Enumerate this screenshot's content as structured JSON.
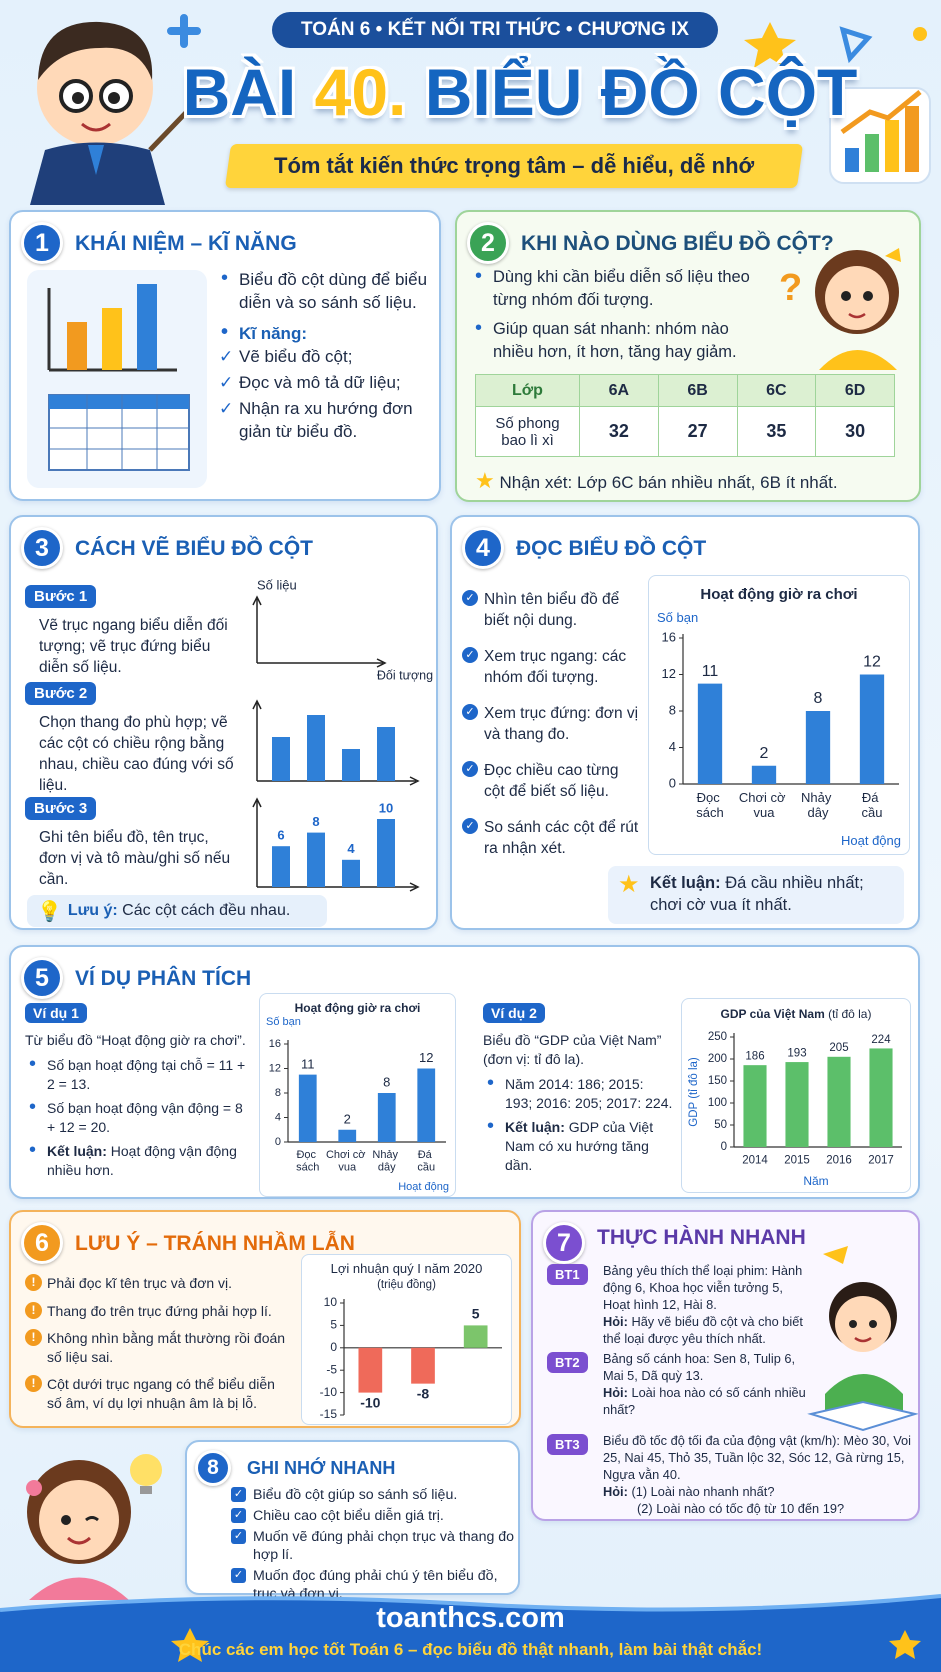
{
  "header": {
    "badge": "TOÁN 6 • KẾT NỐI TRI THỨC • CHƯƠNG IX",
    "title_lead": "BÀI",
    "title_number": "40.",
    "title_main": "BIỂU ĐỒ CỘT",
    "subtitle": "Tóm tắt kiến thức trọng tâm – dễ hiểu, dễ nhớ"
  },
  "sections": [
    {
      "number": 1,
      "title": "KHÁI NIỆM – KĨ NĂNG",
      "definition": "Biểu đồ cột dùng để biểu diễn và so sánh số liệu.",
      "skills_heading": "Kĩ năng:",
      "skills": [
        "Vẽ biểu đồ cột;",
        "Đọc và mô tả dữ liệu;",
        "Nhận ra xu hướng đơn giản từ biểu đồ."
      ]
    },
    {
      "number": 2,
      "title": "KHI NÀO DÙNG BIỂU ĐỒ CỘT?",
      "points": [
        "Dùng khi cần biểu diễn số liệu theo từng nhóm đối tượng.",
        "Giúp quan sát nhanh: nhóm nào nhiều hơn, ít hơn, tăng hay giảm."
      ],
      "table": {
        "header": [
          "Lớp",
          "6A",
          "6B",
          "6C",
          "6D"
        ],
        "row_label": "Số phong bao lì xì",
        "values": [
          32,
          27,
          35,
          30
        ]
      },
      "remark": "Nhận xét: Lớp 6C bán nhiều nhất, 6B ít nhất."
    },
    {
      "number": 3,
      "title": "CÁCH VẼ BIỂU ĐỒ CỘT",
      "steps": [
        {
          "label": "Bước 1",
          "text": "Vẽ trục ngang biểu diễn đối tượng; vẽ trục đứng biểu diễn số liệu."
        },
        {
          "label": "Bước 2",
          "text": "Chọn thang đo phù hợp; vẽ các cột có chiều rộng bằng nhau, chiều cao đúng với số liệu."
        },
        {
          "label": "Bước 3",
          "text": "Ghi tên biểu đồ, tên trục, đơn vị và tô màu/ghi số nếu cần."
        }
      ],
      "y_axis_label": "Số liệu",
      "x_axis_label": "Đối tượng",
      "example": {
        "type": "bar",
        "values": [
          6,
          8,
          4,
          10
        ],
        "color": "#2f80d8"
      },
      "note_label": "Lưu ý:",
      "note": "Các cột cách đều nhau."
    },
    {
      "number": 4,
      "title": "ĐỌC BIỂU ĐỒ CỘT",
      "steps": [
        "Nhìn tên biểu đồ để biết nội dung.",
        "Xem trục ngang: các nhóm đối tượng.",
        "Xem trục đứng: đơn vị và thang đo.",
        "Đọc chiều cao từng cột để biết số liệu.",
        "So sánh các cột để rút ra nhận xét."
      ],
      "chart": {
        "type": "bar",
        "title": "Hoạt động giờ ra chơi",
        "y_label": "Số bạn",
        "x_label": "Hoạt động",
        "categories": [
          "Đọc sách",
          "Chơi cờ vua",
          "Nhảy dây",
          "Đá cầu"
        ],
        "values": [
          11,
          2,
          8,
          12
        ],
        "color": "#2f80d8",
        "ylim": [
          0,
          16
        ],
        "yticks": [
          0,
          4,
          8,
          12,
          16
        ]
      },
      "conclusion_label": "Kết luận:",
      "conclusion": "Đá cầu nhiều nhất; chơi cờ vua ít nhất."
    },
    {
      "number": 5,
      "title": "VÍ DỤ PHÂN TÍCH",
      "examples": [
        {
          "label": "Ví dụ 1",
          "intro": "Từ biểu đồ “Hoạt động giờ ra chơi”.",
          "points": [
            "Số bạn hoạt động tại chỗ = 11 + 2 = 13.",
            "Số bạn hoạt động vận động = 8 + 12 = 20."
          ],
          "conclusion_label": "Kết luận:",
          "conclusion": "Hoạt động vận động nhiều hơn.",
          "chart": {
            "type": "bar",
            "title": "Hoạt động giờ ra chơi",
            "y_label": "Số bạn",
            "x_label": "Hoạt động",
            "categories": [
              "Đọc sách",
              "Chơi cờ vua",
              "Nhảy dây",
              "Đá cầu"
            ],
            "values": [
              11,
              2,
              8,
              12
            ],
            "color": "#2f80d8",
            "ylim": [
              0,
              16
            ],
            "yticks": [
              0,
              4,
              8,
              12,
              16
            ]
          }
        },
        {
          "label": "Ví dụ 2",
          "intro": "Biểu đồ “GDP của Việt Nam” (đơn vị: tỉ đô la).",
          "points": [
            "Năm 2014: 186; 2015: 193; 2016: 205; 2017: 224."
          ],
          "conclusion_label": "Kết luận:",
          "conclusion": "GDP của Việt Nam có xu hướng tăng dần.",
          "chart": {
            "type": "bar",
            "title": "GDP của Việt Nam",
            "title_unit": "(tỉ đô la)",
            "y_label": "GDP (tỉ đô la)",
            "x_label": "Năm",
            "categories": [
              "2014",
              "2015",
              "2016",
              "2017"
            ],
            "values": [
              186,
              193,
              205,
              224
            ],
            "color": "#5cbf6a",
            "ylim": [
              0,
              250
            ],
            "yticks": [
              0,
              50,
              100,
              150,
              200,
              250
            ]
          }
        }
      ]
    },
    {
      "number": 6,
      "title": "LƯU Ý – TRÁNH NHẦM LẪN",
      "points": [
        "Phải đọc kĩ tên trục và đơn vị.",
        "Thang đo trên trục đứng phải hợp lí.",
        "Không nhìn bằng mắt thường rồi đoán số liệu sai.",
        "Cột dưới trục ngang có thể biểu diễn số âm, ví dụ lợi nhuận âm là bị lỗ."
      ],
      "chart": {
        "type": "bar",
        "title": "Lợi nhuận quý I năm 2020",
        "subtitle": "(triệu đồng)",
        "categories": [
          null,
          null,
          null
        ],
        "values": [
          -10,
          -8,
          5
        ],
        "colors": [
          "#ef6a5a",
          "#ef6a5a",
          "#7cc56b"
        ],
        "ylim": [
          -15,
          10
        ],
        "yticks": [
          -15,
          -10,
          -5,
          0,
          5,
          10
        ]
      }
    },
    {
      "number": 7,
      "title": "THỰC HÀNH NHANH",
      "exercises": [
        {
          "label": "BT1",
          "text": "Bảng yêu thích thể loại phim: Hành động 6, Khoa học viễn tưởng 5, Hoạt hình 12, Hài 8.",
          "question_label": "Hỏi:",
          "question": "Hãy vẽ biểu đồ cột và cho biết thể loại được yêu thích nhất."
        },
        {
          "label": "BT2",
          "text": "Bảng số cánh hoa: Sen 8, Tulip 6, Mai 5, Dã quỳ 13.",
          "question_label": "Hỏi:",
          "question": "Loài hoa nào có số cánh nhiều nhất?"
        },
        {
          "label": "BT3",
          "text": "Biểu đồ tốc độ tối đa của động vật (km/h): Mèo 30, Voi 25, Nai 45, Thỏ 35, Tuần lộc 32, Sóc 12, Gà rừng 15, Ngựa vằn 40.",
          "question_label": "Hỏi:",
          "questions": [
            "(1) Loài nào nhanh nhất?",
            "(2) Loài nào có tốc độ từ 10 đến 19?"
          ]
        }
      ]
    },
    {
      "number": 8,
      "title": "GHI NHỚ NHANH",
      "points": [
        "Biểu đồ cột giúp so sánh số liệu.",
        "Chiều cao cột biểu diễn giá trị.",
        "Muốn vẽ đúng phải chọn trục và thang đo hợp lí.",
        "Muốn đọc đúng phải chú ý tên biểu đồ, trục và đơn vị."
      ]
    }
  ],
  "footer": {
    "site": "toanthcs.com",
    "slogan": "Chúc các em học tốt Toán 6 – đọc biểu đồ thật nhanh, làm bài thật chắc!"
  }
}
